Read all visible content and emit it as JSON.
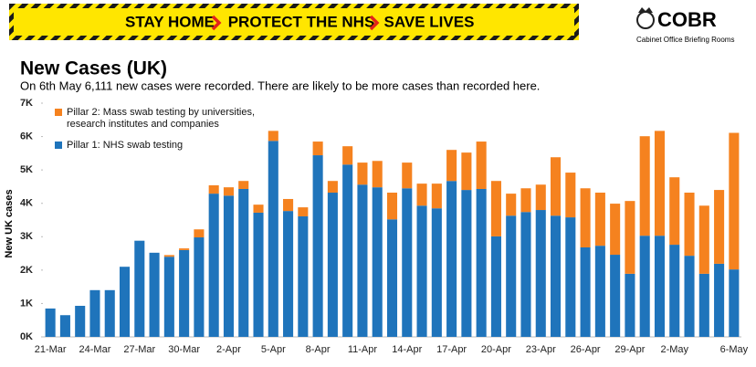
{
  "banner": {
    "items": [
      "STAY HOME",
      "PROTECT THE NHS",
      "SAVE LIVES"
    ]
  },
  "logo": {
    "name": "COBR",
    "subtitle": "Cabinet Office Briefing Rooms"
  },
  "chart_data": {
    "type": "stacked_bar",
    "title": "New Cases (UK)",
    "subtitle": "On 6th May 6,111 new cases were recorded. There are likely to be more cases than recorded here.",
    "y_label": "New UK cases",
    "categories": [
      "21-Mar",
      null,
      null,
      "24-Mar",
      null,
      null,
      "27-Mar",
      null,
      null,
      "30-Mar",
      null,
      null,
      "2-Apr",
      null,
      null,
      "5-Apr",
      null,
      null,
      "8-Apr",
      null,
      null,
      "11-Apr",
      null,
      null,
      "14-Apr",
      null,
      null,
      "17-Apr",
      null,
      null,
      "20-Apr",
      null,
      null,
      "23-Apr",
      null,
      null,
      "26-Apr",
      null,
      null,
      "29-Apr",
      null,
      null,
      "2-May",
      null,
      null,
      null,
      "6-May"
    ],
    "series": [
      {
        "name": "Pillar 1: NHS swab testing",
        "color": "#1f74bb",
        "values": [
          850,
          650,
          930,
          1400,
          1400,
          2100,
          2880,
          2520,
          2400,
          2600,
          2980,
          4290,
          4230,
          4430,
          3720,
          5870,
          3770,
          3610,
          5440,
          4320,
          5160,
          4560,
          4480,
          3520,
          4450,
          3930,
          3850,
          4670,
          4400,
          4430,
          3010,
          3630,
          3740,
          3800,
          3630,
          3580,
          2680,
          2730,
          2460,
          1890,
          3030,
          3030,
          2760,
          2430,
          1890,
          2190,
          2020
        ]
      },
      {
        "name": "Pillar 2: Mass swab testing by universities, research institutes and companies",
        "color": "#f5821f",
        "values": [
          0,
          0,
          0,
          0,
          0,
          0,
          0,
          0,
          50,
          50,
          240,
          250,
          250,
          240,
          240,
          300,
          360,
          270,
          410,
          350,
          550,
          660,
          790,
          800,
          770,
          660,
          740,
          930,
          1120,
          1420,
          1660,
          660,
          710,
          760,
          1750,
          1340,
          1770,
          1590,
          1530,
          2180,
          2980,
          3140,
          2020,
          1890,
          2040,
          2210,
          4091
        ]
      }
    ],
    "ylim": [
      0,
      7000
    ],
    "yticks": [
      {
        "value": 0,
        "label": "0K"
      },
      {
        "value": 1000,
        "label": "1K"
      },
      {
        "value": 2000,
        "label": "2K"
      },
      {
        "value": 3000,
        "label": "3K"
      },
      {
        "value": 4000,
        "label": "4K"
      },
      {
        "value": 5000,
        "label": "5K"
      },
      {
        "value": 6000,
        "label": "6K"
      },
      {
        "value": 7000,
        "label": "7K"
      }
    ],
    "grid": false,
    "legend": "top-left"
  }
}
